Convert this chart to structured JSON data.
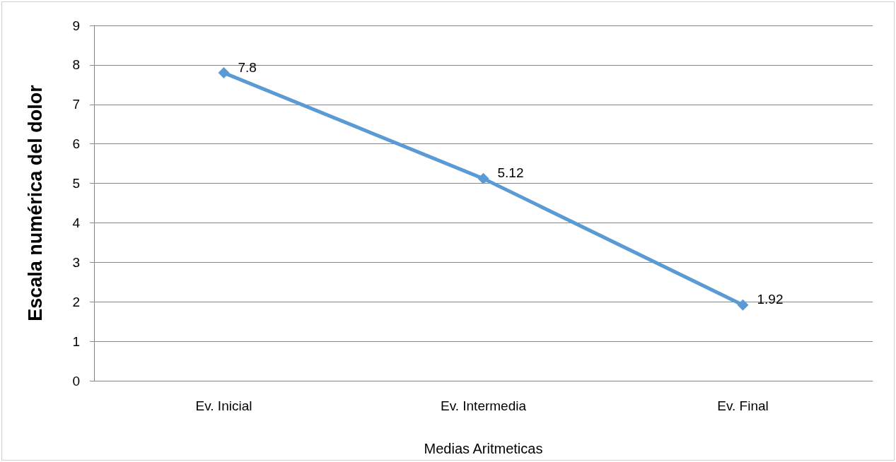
{
  "chart_data": {
    "type": "line",
    "ylabel": "Escala numérica del dolor",
    "xlabel": "Medias Aritmeticas",
    "categories": [
      "Ev. Inicial",
      "Ev. Intermedia",
      "Ev. Final"
    ],
    "series": [
      {
        "color": "#5b9bd5",
        "values": [
          7.8,
          5.12,
          1.92
        ]
      }
    ],
    "ylim": [
      0,
      9
    ],
    "yticks": [
      0,
      1,
      2,
      3,
      4,
      5,
      6,
      7,
      8,
      9
    ],
    "grid": "y",
    "marker": "diamond",
    "line_style": "solid",
    "data_labels": true
  }
}
